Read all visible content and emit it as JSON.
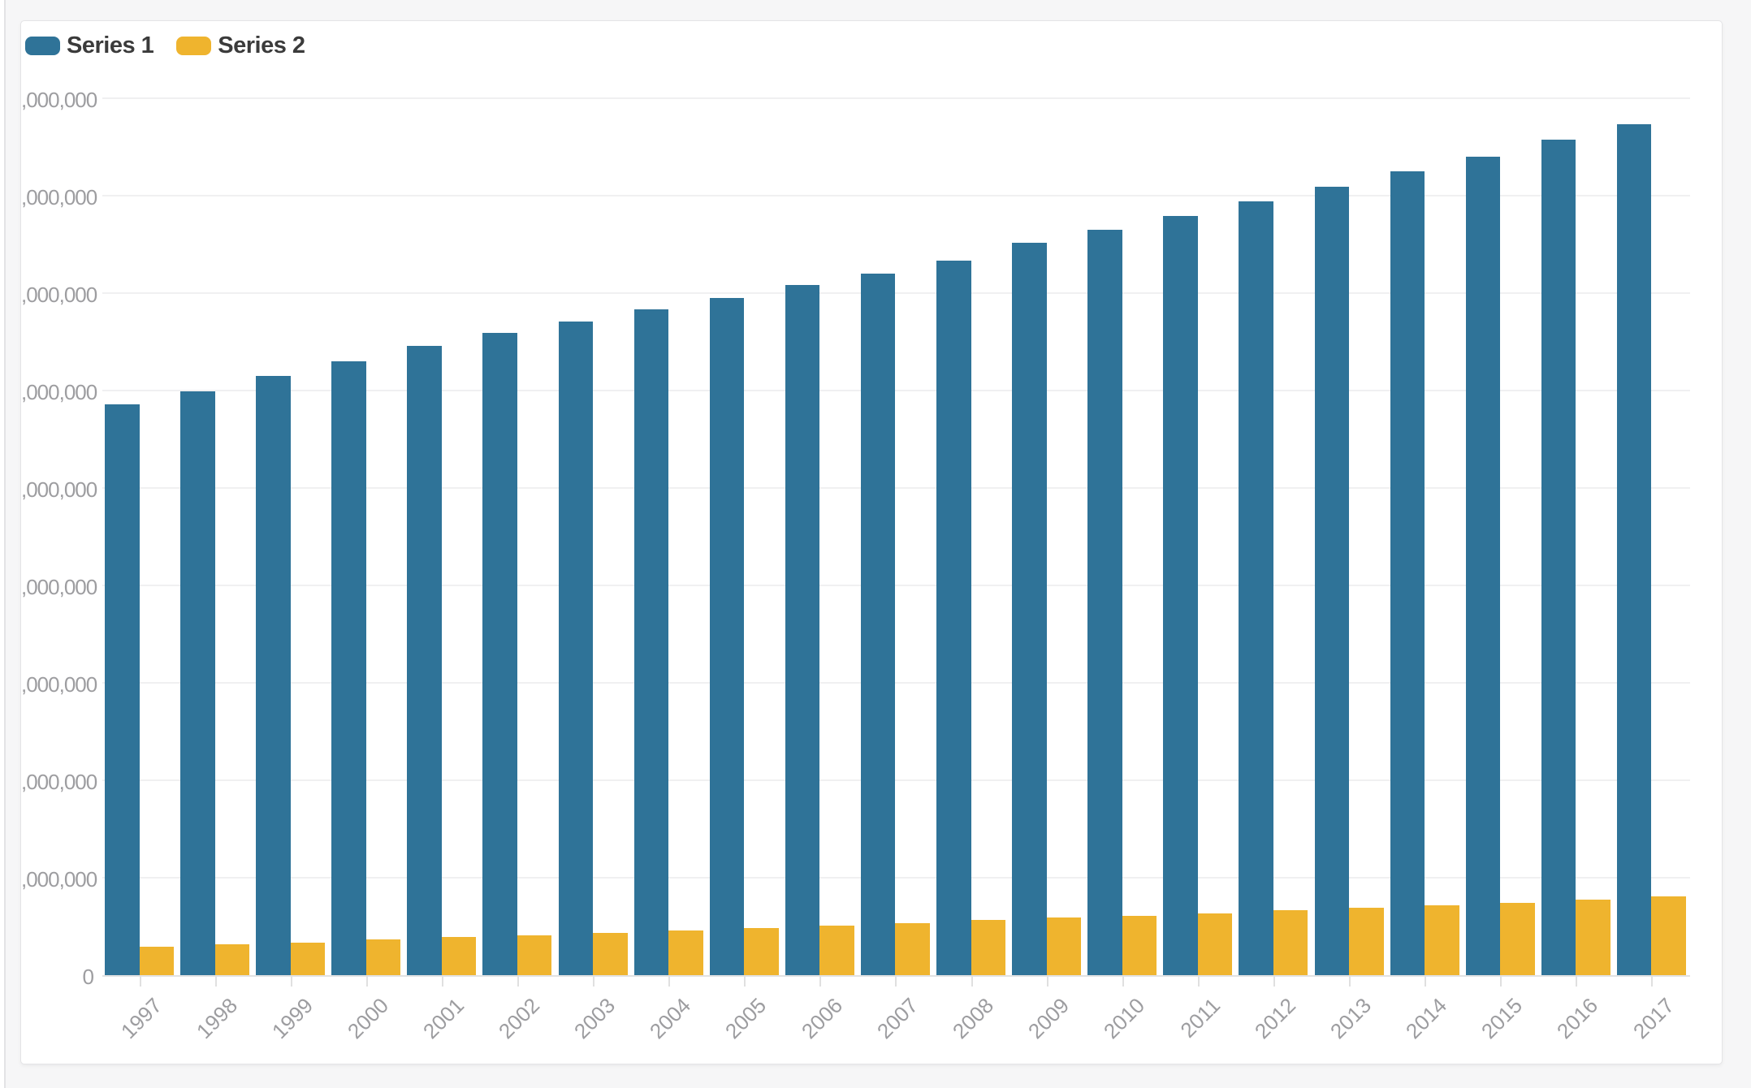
{
  "page": {
    "background": "#f6f6f7",
    "card_background": "#ffffff",
    "border_color": "#e4e4e6"
  },
  "legend": {
    "items": [
      {
        "label": "Series 1",
        "color": "#2f7398"
      },
      {
        "label": "Series 2",
        "color": "#efb42e"
      }
    ]
  },
  "chart_data": {
    "type": "bar",
    "title": "",
    "xlabel": "",
    "ylabel": "",
    "grid": "horizontal",
    "legend_position": "top-left",
    "categories": [
      "1997",
      "1998",
      "1999",
      "2000",
      "2001",
      "2002",
      "2003",
      "2004",
      "2005",
      "2006",
      "2007",
      "2008",
      "2009",
      "2010",
      "2011",
      "2012",
      "2013",
      "2014",
      "2015",
      "2016",
      "2017"
    ],
    "series": [
      {
        "name": "Series 1",
        "color": "#2f7398",
        "values": [
          5860000,
          5990000,
          6150000,
          6300000,
          6460000,
          6590000,
          6710000,
          6830000,
          6950000,
          7080000,
          7200000,
          7330000,
          7510000,
          7650000,
          7790000,
          7940000,
          8090000,
          8250000,
          8400000,
          8570000,
          8730000
        ]
      },
      {
        "name": "Series 2",
        "color": "#efb42e",
        "values": [
          290000,
          315000,
          335000,
          370000,
          390000,
          410000,
          435000,
          455000,
          485000,
          505000,
          535000,
          570000,
          590000,
          610000,
          635000,
          665000,
          695000,
          715000,
          745000,
          775000,
          810000
        ]
      }
    ],
    "ylim": [
      0,
      9280000
    ],
    "y_ticks": [
      {
        "value": 9000000,
        "label": ",000,000"
      },
      {
        "value": 8000000,
        "label": ",000,000"
      },
      {
        "value": 7000000,
        "label": ",000,000"
      },
      {
        "value": 6000000,
        "label": ",000,000"
      },
      {
        "value": 5000000,
        "label": ",000,000"
      },
      {
        "value": 4000000,
        "label": ",000,000"
      },
      {
        "value": 3000000,
        "label": ",000,000"
      },
      {
        "value": 2000000,
        "label": ",000,000"
      },
      {
        "value": 1000000,
        "label": ",000,000"
      },
      {
        "value": 0,
        "label": "0"
      }
    ]
  }
}
